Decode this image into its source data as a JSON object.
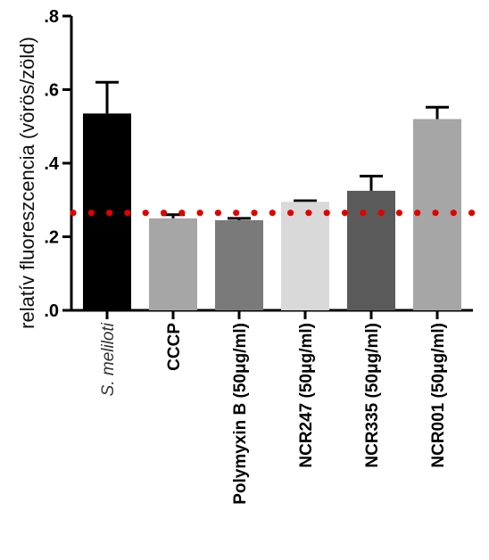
{
  "chart_data": {
    "type": "bar",
    "ylabel": "relatív fluoreszcencia (vörös/zöld)",
    "xlabel": "",
    "ylim": [
      0,
      0.8
    ],
    "yticks": [
      ".0",
      ".2",
      ".4",
      ".6",
      ".8"
    ],
    "ytick_values": [
      0,
      0.2,
      0.4,
      0.6,
      0.8
    ],
    "categories": [
      "S. meliloti",
      "CCCP",
      "Polymyxin B (50μg/ml)",
      "NCR247 (50μg/ml)",
      "NCR335 (50μg/ml)",
      "NCR001 (50μg/ml)"
    ],
    "values": [
      0.535,
      0.25,
      0.245,
      0.295,
      0.325,
      0.52
    ],
    "errors": [
      0.085,
      0.01,
      0.005,
      0.003,
      0.04,
      0.032
    ],
    "bar_colors": [
      "#000000",
      "#a6a6a6",
      "#7a7a7a",
      "#d9d9d9",
      "#5a5a5a",
      "#a6a6a6"
    ],
    "reference_line": {
      "value": 0.265,
      "color": "#e00000",
      "style": "dotted"
    },
    "grid": false,
    "legend": "none"
  }
}
